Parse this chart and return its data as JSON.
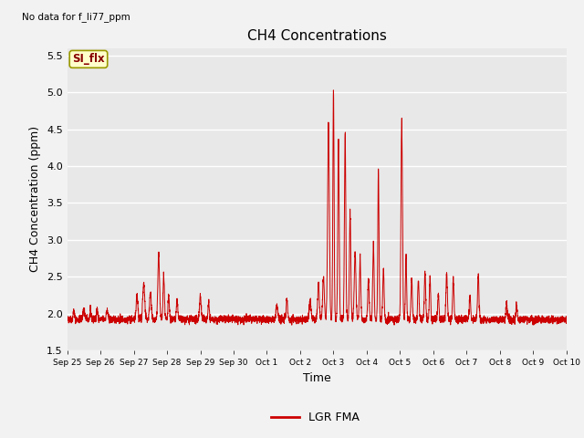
{
  "title": "CH4 Concentrations",
  "top_left_text": "No data for f_li77_ppm",
  "xlabel": "Time",
  "ylabel": "CH4 Concentration (ppm)",
  "ylim": [
    1.5,
    5.6
  ],
  "yticks": [
    1.5,
    2.0,
    2.5,
    3.0,
    3.5,
    4.0,
    4.5,
    5.0,
    5.5
  ],
  "line_color": "#cc0000",
  "line_label": "LGR FMA",
  "legend_label_badge": "SI_flx",
  "badge_bg_color": "#ffffcc",
  "badge_border_color": "#999900",
  "badge_text_color": "#880000",
  "xtick_labels": [
    "Sep 25",
    "Sep 26",
    "Sep 27",
    "Sep 28",
    "Sep 29",
    "Sep 30",
    "Oct 1",
    "Oct 2",
    "Oct 3",
    "Oct 4",
    "Oct 5",
    "Oct 6",
    "Oct 7",
    "Oct 8",
    "Oct 9",
    "Oct 10"
  ],
  "plot_bg_color": "#e8e8e8",
  "fig_bg_color": "#f2f2f2",
  "grid_color": "#ffffff"
}
